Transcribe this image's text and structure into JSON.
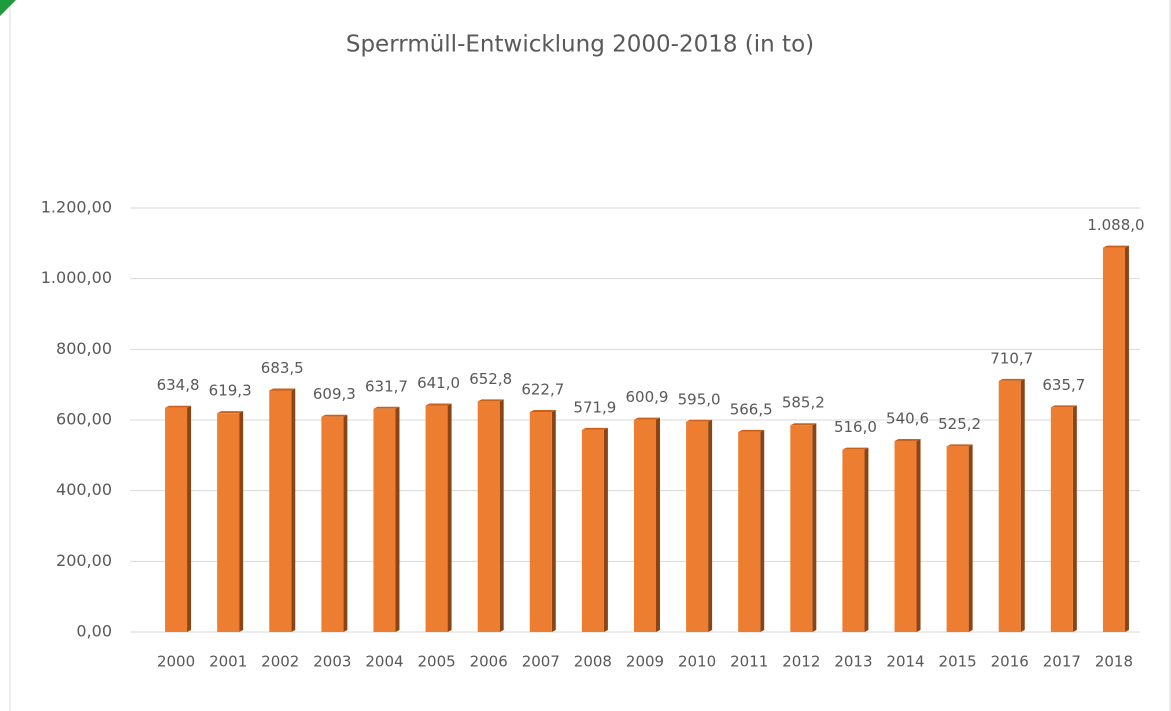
{
  "chart_data": {
    "type": "bar",
    "title": "Sperrmüll-Entwicklung 2000-2018  (in to)",
    "categories": [
      "2000",
      "2001",
      "2002",
      "2003",
      "2004",
      "2005",
      "2006",
      "2007",
      "2008",
      "2009",
      "2010",
      "2011",
      "2012",
      "2013",
      "2014",
      "2015",
      "2016",
      "2017",
      "2018"
    ],
    "values": [
      634.8,
      619.3,
      683.5,
      609.3,
      631.7,
      641.0,
      652.8,
      622.7,
      571.9,
      600.9,
      595.0,
      566.5,
      585.2,
      516.0,
      540.6,
      525.2,
      710.7,
      635.7,
      1088.0
    ],
    "value_labels": [
      "634,8",
      "619,3",
      "683,5",
      "609,3",
      "631,7",
      "641,0",
      "652,8",
      "622,7",
      "571,9",
      "600,9",
      "595,0",
      "566,5",
      "585,2",
      "516,0",
      "540,6",
      "525,2",
      "710,7",
      "635,7",
      "1.088,0"
    ],
    "color": "#ed7d31",
    "ylim": [
      0,
      1200
    ],
    "yticks": [
      {
        "value": 0,
        "label": "0,00"
      },
      {
        "value": 200,
        "label": "200,00"
      },
      {
        "value": 400,
        "label": "400,00"
      },
      {
        "value": 600,
        "label": "600,00"
      },
      {
        "value": 800,
        "label": "800,00"
      },
      {
        "value": 1000,
        "label": "1.000,00"
      },
      {
        "value": 1200,
        "label": "1.200,00"
      }
    ],
    "grid": true
  }
}
